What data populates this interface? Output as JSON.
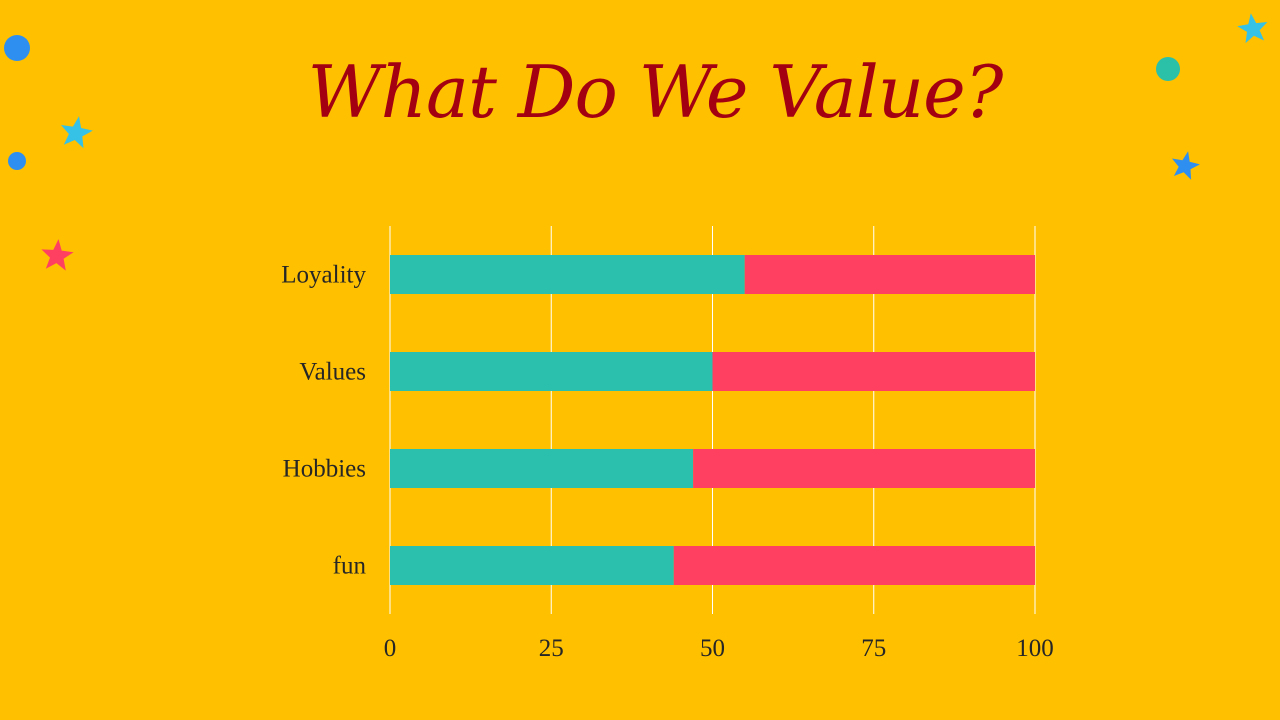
{
  "slide": {
    "title": "What Do We Value?",
    "background_color": "#FFC000",
    "title_color": "#A30012"
  },
  "decorations": [
    {
      "name": "blue-dot-icon",
      "shape": "circle",
      "color": "#2E8FF0"
    },
    {
      "name": "blue-dot-icon",
      "shape": "circle",
      "color": "#2E8FF0"
    },
    {
      "name": "teal-dot-icon",
      "shape": "circle",
      "color": "#2BC0A8"
    },
    {
      "name": "cyan-star-icon",
      "shape": "star",
      "color": "#35C2E6"
    },
    {
      "name": "cyan-star-icon",
      "shape": "star",
      "color": "#35C2E6"
    },
    {
      "name": "red-star-icon",
      "shape": "star",
      "color": "#FF4060"
    },
    {
      "name": "blue-star-icon",
      "shape": "star",
      "color": "#2E8FF0"
    }
  ],
  "chart_data": {
    "type": "bar",
    "orientation": "horizontal",
    "stacked": true,
    "categories": [
      "Loyality",
      "Values",
      "Hobbies",
      "fun"
    ],
    "series": [
      {
        "color": "#2BC0AD",
        "values": [
          55,
          50,
          47,
          44
        ]
      },
      {
        "color": "#FF4060",
        "values": [
          45,
          50,
          53,
          56
        ]
      }
    ],
    "x_ticks": [
      "0",
      "25",
      "50",
      "75",
      "100"
    ],
    "xlim": [
      0,
      100
    ],
    "grid": true,
    "gridline_color": "#FFFFFF",
    "label_color": "#262626",
    "title": "",
    "xlabel": "",
    "ylabel": ""
  }
}
